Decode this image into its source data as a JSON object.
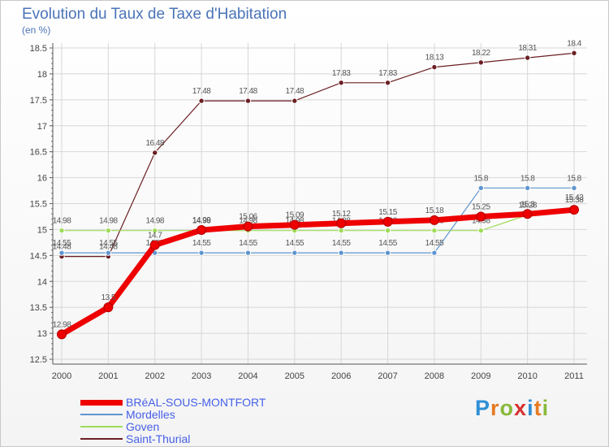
{
  "header": {
    "title": "Evolution du Taux de Taxe d'Habitation",
    "subtitle": "(en %)"
  },
  "logo": {
    "letters": [
      "P",
      "r",
      "o",
      "x",
      "i",
      "t",
      "i"
    ],
    "colors": [
      "#2f8fd6",
      "#e57c22",
      "#88b93a",
      "#d6312f",
      "#2f8fd6",
      "#e57c22",
      "#88b93a"
    ]
  },
  "chart_data": {
    "type": "line",
    "title": "Evolution du Taux de Taxe d'Habitation",
    "ylabel": "(en %)",
    "xlabel": "",
    "categories": [
      "2000",
      "2001",
      "2002",
      "2003",
      "2004",
      "2005",
      "2006",
      "2007",
      "2008",
      "2009",
      "2010",
      "2011"
    ],
    "ylim": [
      12.5,
      18.5
    ],
    "yticks": [
      12.5,
      13,
      13.5,
      14,
      14.5,
      15,
      15.5,
      16,
      16.5,
      17,
      17.5,
      18,
      18.5
    ],
    "ytick_labels": [
      "12.5",
      "13",
      "13.5",
      "14",
      "14.5",
      "15",
      "15.5",
      "16",
      "16.5",
      "17",
      "17.5",
      "18",
      "18.5"
    ],
    "grid": true,
    "legend_position": "bottom-left",
    "series": [
      {
        "name": "Saint-Thurial",
        "color": "#6b1f24",
        "values": [
          14.48,
          14.48,
          16.48,
          17.48,
          17.48,
          17.48,
          17.83,
          17.83,
          18.13,
          18.22,
          18.31,
          18.4
        ],
        "labels": [
          "14.48",
          "14.48",
          "16.48",
          "17.48",
          "17.48",
          "17.48",
          "17.83",
          "17.83",
          "18.13",
          "18.22",
          "18.31",
          "18.4"
        ]
      },
      {
        "name": "Mordelles",
        "color": "#5f95cf",
        "values": [
          14.55,
          14.55,
          14.55,
          14.55,
          14.55,
          14.55,
          14.55,
          14.55,
          14.55,
          15.8,
          15.8,
          15.8
        ],
        "labels": [
          "14.55",
          "14.55",
          "14.55",
          "14.55",
          "14.55",
          "14.55",
          "14.55",
          "14.55",
          "14.55",
          "15.8",
          "15.8",
          "15.8"
        ]
      },
      {
        "name": "Goven",
        "color": "#9fdc5a",
        "values": [
          14.98,
          14.98,
          14.98,
          14.98,
          14.98,
          14.98,
          14.98,
          14.98,
          14.98,
          14.98,
          15.28,
          15.43
        ],
        "labels": [
          "14.98",
          "14.98",
          "14.98",
          "14.98",
          "14.98",
          "14.98",
          "14.98",
          "14.98",
          "14.98",
          "14.98",
          "15.28",
          "15.43"
        ]
      },
      {
        "name": "BRéAL-SOUS-MONTFORT",
        "color": "#ee0000",
        "values": [
          12.98,
          13.5,
          14.7,
          14.99,
          15.06,
          15.09,
          15.12,
          15.15,
          15.18,
          15.25,
          15.3,
          15.38
        ],
        "labels": [
          "12.98",
          "13.5",
          "14.7",
          "14.99",
          "15.06",
          "15.09",
          "15.12",
          "15.15",
          "15.18",
          "15.25",
          "15.3",
          "15.38"
        ]
      }
    ],
    "legend": [
      {
        "name": "BRéAL-SOUS-MONTFORT",
        "color": "#ee0000"
      },
      {
        "name": "Mordelles",
        "color": "#5f95cf"
      },
      {
        "name": "Goven",
        "color": "#9fdc5a"
      },
      {
        "name": "Saint-Thurial",
        "color": "#6b1f24"
      }
    ]
  }
}
